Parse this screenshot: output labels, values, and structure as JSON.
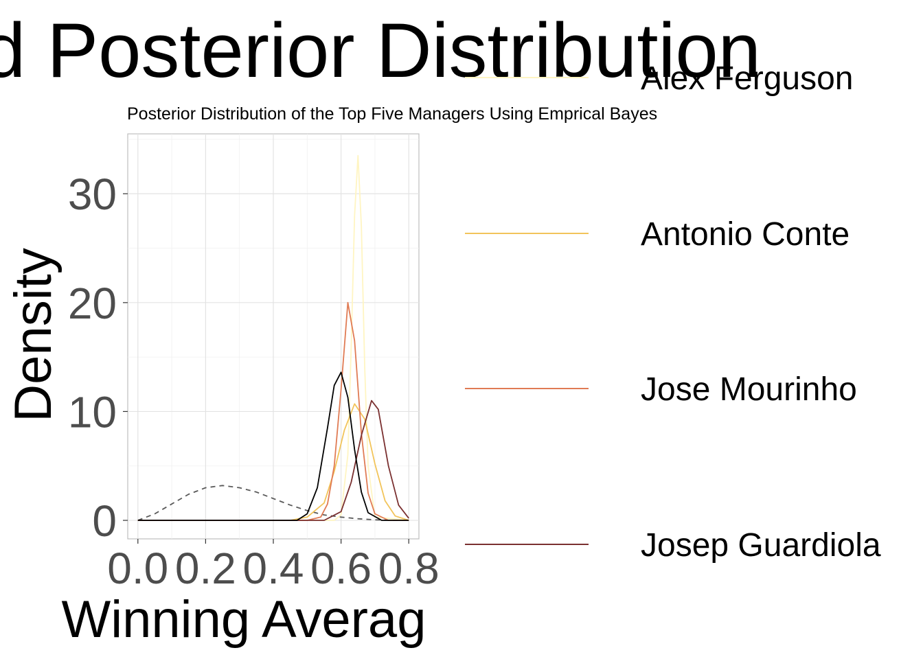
{
  "chart_data": {
    "type": "line",
    "title": "d Posterior Distribution",
    "subtitle": "Posterior Distribution of the Top Five Managers Using Emprical Bayes",
    "xlabel": "Winning Averag",
    "ylabel": "Density",
    "xlim": [
      -0.03,
      0.83
    ],
    "ylim": [
      -1.7,
      35.5
    ],
    "x_ticks": [
      0.0,
      0.2,
      0.4,
      0.6,
      0.8
    ],
    "x_tick_labels": [
      "0.0",
      "0.2",
      "0.4",
      "0.6",
      "0.8"
    ],
    "y_ticks": [
      0,
      10,
      20,
      30
    ],
    "y_tick_labels": [
      "0",
      "10",
      "20",
      "30"
    ],
    "grid": true,
    "legend_position": "right",
    "series": [
      {
        "name": "",
        "linestyle": "dashed",
        "color": "#595959",
        "x": [
          0.0,
          0.05,
          0.1,
          0.15,
          0.2,
          0.25,
          0.3,
          0.35,
          0.4,
          0.45,
          0.5,
          0.55,
          0.6,
          0.65,
          0.7,
          0.75,
          0.8
        ],
        "y": [
          0.0,
          0.6,
          1.5,
          2.4,
          3.0,
          3.2,
          3.0,
          2.6,
          2.0,
          1.4,
          0.9,
          0.5,
          0.3,
          0.15,
          0.05,
          0.0,
          0.0
        ]
      },
      {
        "name": "Alex Ferguson",
        "linestyle": "solid",
        "color": "#FFF5C2",
        "x": [
          0.0,
          0.58,
          0.6,
          0.62,
          0.63,
          0.64,
          0.65,
          0.66,
          0.67,
          0.68,
          0.7,
          0.8
        ],
        "y": [
          0.0,
          0.0,
          0.5,
          6.0,
          16.0,
          28.0,
          33.5,
          27.0,
          14.0,
          5.0,
          0.3,
          0.0
        ]
      },
      {
        "name": "Antonio Conte",
        "linestyle": "solid",
        "color": "#F2C45A",
        "x": [
          0.0,
          0.45,
          0.5,
          0.55,
          0.58,
          0.61,
          0.64,
          0.67,
          0.7,
          0.73,
          0.76,
          0.8
        ],
        "y": [
          0.0,
          0.0,
          0.3,
          1.6,
          4.5,
          8.3,
          10.7,
          9.3,
          5.2,
          1.8,
          0.4,
          0.0
        ]
      },
      {
        "name": "Jose Mourinho",
        "linestyle": "solid",
        "color": "#E07B54",
        "x": [
          0.0,
          0.5,
          0.54,
          0.56,
          0.58,
          0.6,
          0.62,
          0.64,
          0.66,
          0.68,
          0.7,
          0.74,
          0.8
        ],
        "y": [
          0.0,
          0.0,
          0.3,
          1.5,
          5.0,
          12.0,
          20.0,
          16.5,
          8.0,
          2.5,
          0.6,
          0.0,
          0.0
        ]
      },
      {
        "name": "Josep Guardiola",
        "linestyle": "solid",
        "color": "#7A3030",
        "x": [
          0.0,
          0.55,
          0.6,
          0.63,
          0.66,
          0.69,
          0.71,
          0.74,
          0.77,
          0.8
        ],
        "y": [
          0.0,
          0.0,
          0.8,
          3.5,
          7.8,
          11.0,
          10.2,
          5.0,
          1.4,
          0.2
        ]
      },
      {
        "name": "",
        "linestyle": "solid",
        "color": "#000000",
        "x": [
          0.0,
          0.47,
          0.5,
          0.53,
          0.56,
          0.58,
          0.6,
          0.62,
          0.64,
          0.66,
          0.68,
          0.72,
          0.8
        ],
        "y": [
          0.0,
          0.0,
          0.6,
          3.0,
          8.5,
          12.4,
          13.6,
          11.3,
          6.5,
          2.6,
          0.7,
          0.0,
          0.0
        ]
      }
    ]
  }
}
